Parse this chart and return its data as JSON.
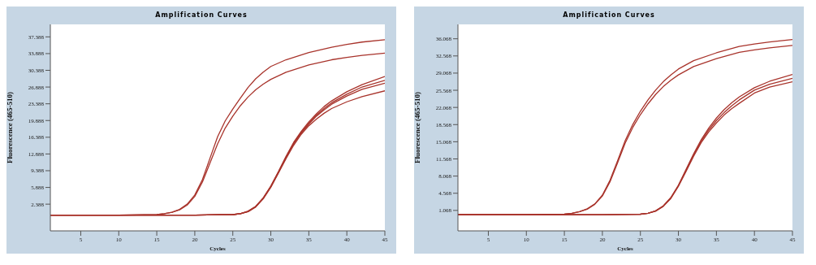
{
  "chart_data": [
    {
      "type": "line",
      "title": "Amplification Curves",
      "xlabel": "Cycles",
      "ylabel": "Fluorescence (465-510)",
      "xlim": [
        1,
        45
      ],
      "xticks": [
        5,
        10,
        15,
        20,
        25,
        30,
        35,
        40,
        45
      ],
      "ylim": [
        -3.2,
        40
      ],
      "yticks": [
        2.388,
        5.888,
        9.388,
        12.888,
        16.388,
        19.888,
        23.388,
        26.888,
        30.388,
        33.888,
        37.388
      ],
      "series": [
        {
          "color": "#a8332b",
          "x": [
            1,
            5,
            10,
            15,
            16,
            17,
            18,
            19,
            20,
            21,
            22,
            23,
            24,
            25,
            26,
            27,
            28,
            29,
            30,
            32,
            35,
            38,
            40,
            42,
            45
          ],
          "values": [
            0.1,
            0.1,
            0.1,
            0.2,
            0.4,
            0.7,
            1.3,
            2.4,
            4.3,
            7.5,
            12.0,
            16.5,
            19.8,
            22.3,
            24.6,
            26.8,
            28.6,
            30.0,
            31.2,
            32.6,
            34.1,
            35.2,
            35.8,
            36.3,
            36.8
          ]
        },
        {
          "color": "#a8332b",
          "x": [
            1,
            5,
            10,
            15,
            16,
            17,
            18,
            19,
            20,
            21,
            22,
            23,
            24,
            25,
            26,
            27,
            28,
            29,
            30,
            32,
            35,
            38,
            40,
            42,
            45
          ],
          "values": [
            0.1,
            0.1,
            0.1,
            0.2,
            0.4,
            0.7,
            1.2,
            2.2,
            4.0,
            7.0,
            11.0,
            15.0,
            18.3,
            20.8,
            23.0,
            24.8,
            26.3,
            27.5,
            28.5,
            30.0,
            31.5,
            32.6,
            33.1,
            33.5,
            34.0
          ]
        },
        {
          "color": "#a8332b",
          "x": [
            1,
            10,
            20,
            25,
            26,
            27,
            28,
            29,
            30,
            31,
            32,
            33,
            34,
            35,
            36,
            37,
            38,
            40,
            42,
            45
          ],
          "values": [
            0.1,
            0.1,
            0.1,
            0.2,
            0.4,
            0.9,
            1.9,
            3.7,
            6.2,
            9.2,
            12.4,
            15.3,
            17.6,
            19.6,
            21.3,
            22.8,
            24.0,
            25.9,
            27.4,
            29.1
          ]
        },
        {
          "color": "#a8332b",
          "x": [
            1,
            10,
            20,
            25,
            26,
            27,
            28,
            29,
            30,
            31,
            32,
            33,
            34,
            35,
            36,
            37,
            38,
            40,
            42,
            45
          ],
          "values": [
            0.1,
            0.1,
            0.1,
            0.2,
            0.4,
            0.9,
            1.9,
            3.6,
            6.1,
            9.1,
            12.2,
            15.1,
            17.4,
            19.3,
            21.0,
            22.4,
            23.6,
            25.4,
            26.9,
            28.3
          ]
        },
        {
          "color": "#a8332b",
          "x": [
            1,
            10,
            20,
            25,
            26,
            27,
            28,
            29,
            30,
            31,
            32,
            33,
            34,
            35,
            36,
            37,
            38,
            40,
            42,
            45
          ],
          "values": [
            0.1,
            0.1,
            0.1,
            0.2,
            0.4,
            0.8,
            1.8,
            3.6,
            6.0,
            9.0,
            12.1,
            15.0,
            17.3,
            19.1,
            20.8,
            22.1,
            23.3,
            25.0,
            26.4,
            27.7
          ]
        },
        {
          "color": "#a8332b",
          "x": [
            1,
            10,
            20,
            25,
            26,
            27,
            28,
            29,
            30,
            31,
            32,
            33,
            34,
            35,
            36,
            37,
            38,
            40,
            42,
            45
          ],
          "values": [
            0.1,
            0.1,
            0.1,
            0.2,
            0.4,
            0.8,
            1.8,
            3.5,
            5.9,
            8.9,
            11.9,
            14.7,
            17.0,
            18.8,
            20.2,
            21.4,
            22.4,
            23.8,
            24.9,
            26.1
          ]
        }
      ]
    },
    {
      "type": "line",
      "title": "Amplification Curves",
      "xlabel": "Cycles",
      "ylabel": "Fluorescence (465-510)",
      "xlim": [
        1,
        45
      ],
      "xticks": [
        5,
        10,
        15,
        20,
        25,
        30,
        35,
        40,
        45
      ],
      "ylim": [
        -3.1,
        39
      ],
      "yticks": [
        1.068,
        4.568,
        8.068,
        11.568,
        15.068,
        18.568,
        22.068,
        25.568,
        29.068,
        32.568,
        36.068
      ],
      "series": [
        {
          "color": "#a8332b",
          "x": [
            1,
            5,
            10,
            15,
            16,
            17,
            18,
            19,
            20,
            21,
            22,
            23,
            24,
            25,
            26,
            27,
            28,
            29,
            30,
            32,
            35,
            38,
            40,
            42,
            45
          ],
          "values": [
            0.2,
            0.2,
            0.2,
            0.3,
            0.5,
            0.8,
            1.4,
            2.4,
            4.2,
            7.2,
            11.2,
            15.3,
            18.6,
            21.3,
            23.6,
            25.6,
            27.3,
            28.7,
            29.9,
            31.6,
            33.2,
            34.5,
            35.0,
            35.4,
            35.9
          ]
        },
        {
          "color": "#a8332b",
          "x": [
            1,
            5,
            10,
            15,
            16,
            17,
            18,
            19,
            20,
            21,
            22,
            23,
            24,
            25,
            26,
            27,
            28,
            29,
            30,
            32,
            35,
            38,
            40,
            42,
            45
          ],
          "values": [
            0.2,
            0.2,
            0.2,
            0.3,
            0.5,
            0.8,
            1.3,
            2.3,
            4.0,
            6.9,
            10.8,
            14.8,
            18.0,
            20.6,
            22.8,
            24.7,
            26.3,
            27.6,
            28.7,
            30.4,
            32.0,
            33.3,
            33.8,
            34.2,
            34.7
          ]
        },
        {
          "color": "#a8332b",
          "x": [
            1,
            10,
            20,
            25,
            26,
            27,
            28,
            29,
            30,
            31,
            32,
            33,
            34,
            35,
            36,
            37,
            38,
            40,
            42,
            45
          ],
          "values": [
            0.2,
            0.2,
            0.2,
            0.3,
            0.5,
            1.0,
            2.0,
            3.7,
            6.2,
            9.4,
            12.6,
            15.5,
            17.9,
            19.9,
            21.6,
            23.0,
            24.2,
            26.1,
            27.4,
            28.8
          ]
        },
        {
          "color": "#a8332b",
          "x": [
            1,
            10,
            20,
            25,
            26,
            27,
            28,
            29,
            30,
            31,
            32,
            33,
            34,
            35,
            36,
            37,
            38,
            40,
            42,
            45
          ],
          "values": [
            0.2,
            0.2,
            0.2,
            0.3,
            0.5,
            1.0,
            1.9,
            3.6,
            6.1,
            9.2,
            12.4,
            15.2,
            17.5,
            19.4,
            21.0,
            22.4,
            23.6,
            25.6,
            26.8,
            28.0
          ]
        },
        {
          "color": "#a8332b",
          "x": [
            1,
            10,
            20,
            25,
            26,
            27,
            28,
            29,
            30,
            31,
            32,
            33,
            34,
            35,
            36,
            37,
            38,
            40,
            42,
            45
          ],
          "values": [
            0.2,
            0.2,
            0.2,
            0.3,
            0.5,
            0.9,
            1.9,
            3.5,
            6.0,
            9.0,
            12.1,
            14.9,
            17.1,
            18.9,
            20.5,
            21.8,
            22.9,
            25.0,
            26.2,
            27.3
          ]
        }
      ]
    }
  ]
}
